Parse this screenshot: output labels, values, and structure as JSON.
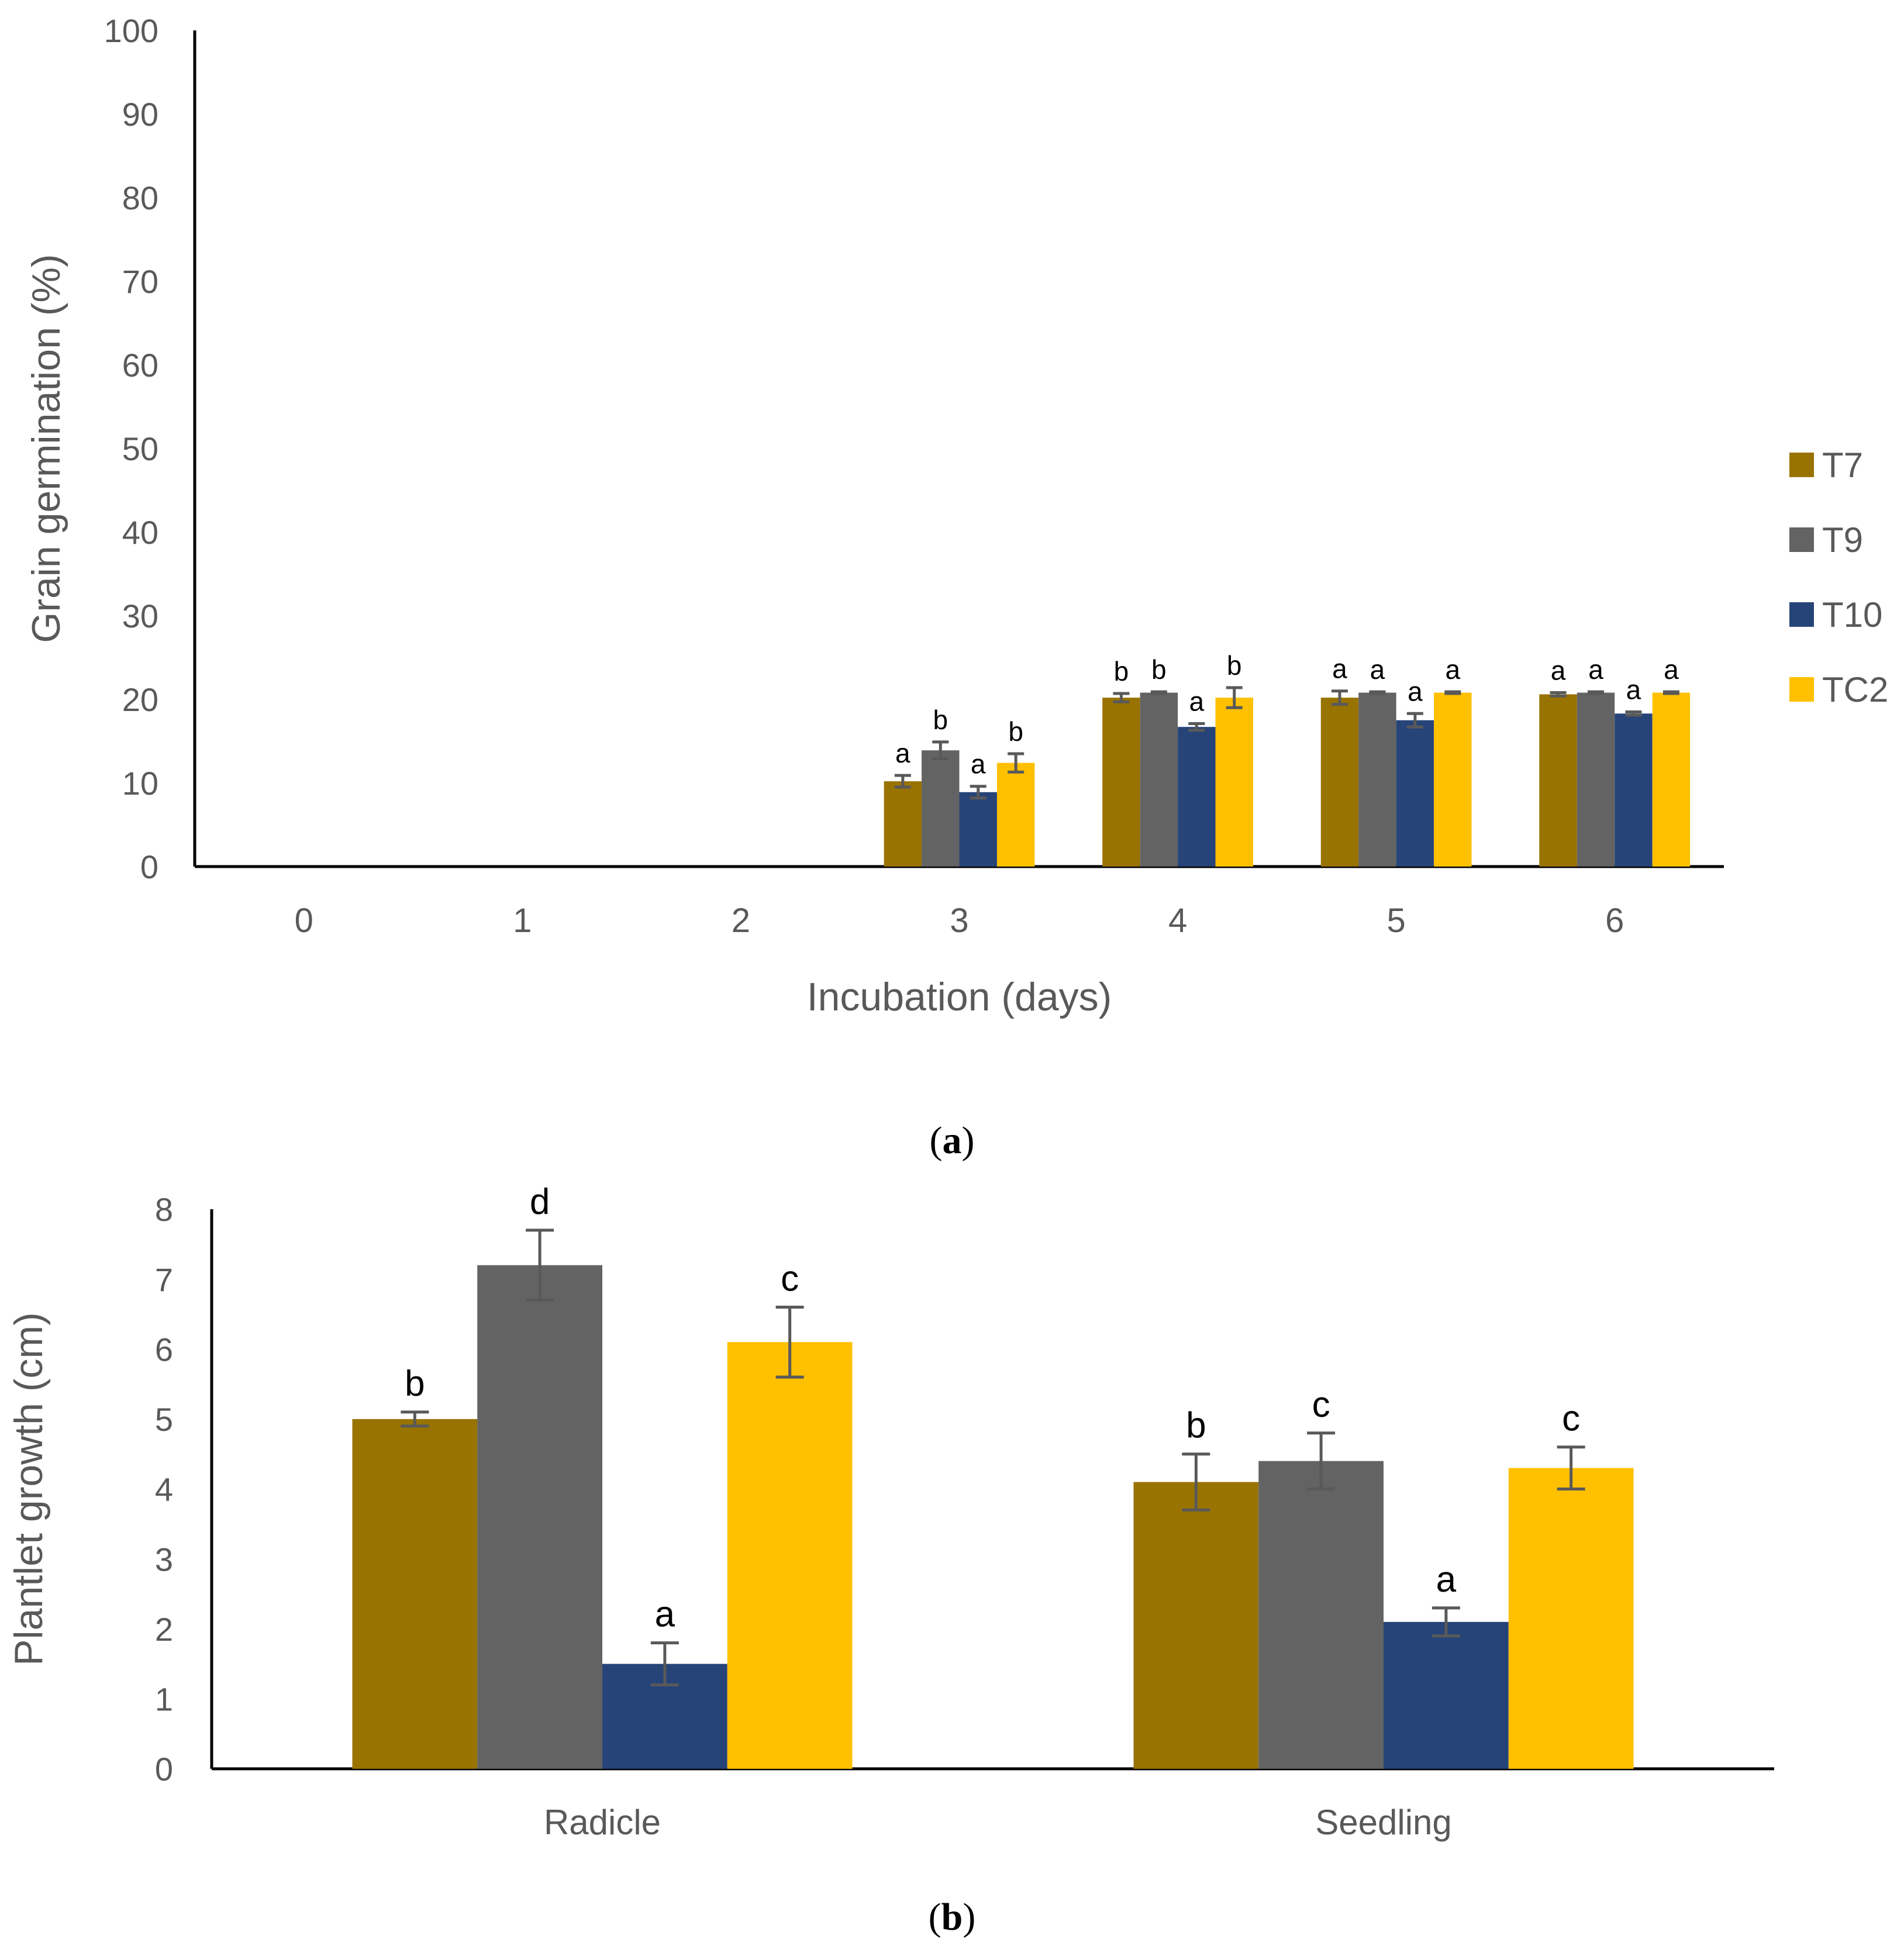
{
  "colors": {
    "T7": "#997300",
    "T9": "#636363",
    "T10": "#264478",
    "TC2": "#FFC000"
  },
  "chart_data": [
    {
      "type": "bar",
      "panel_label": "a",
      "xlabel": "Incubation (days)",
      "ylabel": "Grain germination (%)",
      "ylim": [
        0,
        100
      ],
      "yticks": [
        0,
        10,
        20,
        30,
        40,
        50,
        60,
        70,
        80,
        90,
        100
      ],
      "categories": [
        "0",
        "1",
        "2",
        "3",
        "4",
        "5",
        "6"
      ],
      "grid": false,
      "legend": "right",
      "series": [
        {
          "name": "T7",
          "values": [
            0,
            0,
            0,
            10.2,
            20.2,
            20.2,
            20.6
          ],
          "errors": [
            0,
            0,
            0,
            0.7,
            0.5,
            0.8,
            0.2
          ],
          "letters": [
            "",
            "",
            "",
            "a",
            "b",
            "a",
            "a"
          ]
        },
        {
          "name": "T9",
          "values": [
            0,
            0,
            0,
            13.9,
            20.8,
            20.8,
            20.8
          ],
          "errors": [
            0,
            0,
            0,
            1.0,
            0.1,
            0.1,
            0.1
          ],
          "letters": [
            "",
            "",
            "",
            "b",
            "b",
            "a",
            "a"
          ]
        },
        {
          "name": "T10",
          "values": [
            0,
            0,
            0,
            8.9,
            16.7,
            17.5,
            18.3
          ],
          "errors": [
            0,
            0,
            0,
            0.7,
            0.4,
            0.8,
            0.2
          ],
          "letters": [
            "",
            "",
            "",
            "a",
            "a",
            "a",
            "a"
          ]
        },
        {
          "name": "TC2",
          "values": [
            0,
            0,
            0,
            12.4,
            20.2,
            20.8,
            20.8
          ],
          "errors": [
            0,
            0,
            0,
            1.1,
            1.2,
            0.1,
            0.1
          ],
          "letters": [
            "",
            "",
            "",
            "b",
            "b",
            "a",
            "a"
          ]
        }
      ]
    },
    {
      "type": "bar",
      "panel_label": "b",
      "xlabel": "",
      "ylabel": "Plantlet growth (cm)",
      "ylim": [
        0,
        8
      ],
      "yticks": [
        0,
        1,
        2,
        3,
        4,
        5,
        6,
        7,
        8
      ],
      "categories": [
        "Radicle",
        "Seedling"
      ],
      "grid": false,
      "legend": "none",
      "series": [
        {
          "name": "T7",
          "values": [
            5.0,
            4.1
          ],
          "errors": [
            0.1,
            0.4
          ],
          "letters": [
            "b",
            "b"
          ]
        },
        {
          "name": "T9",
          "values": [
            7.2,
            4.4
          ],
          "errors": [
            0.5,
            0.4
          ],
          "letters": [
            "d",
            "c"
          ]
        },
        {
          "name": "T10",
          "values": [
            1.5,
            2.1
          ],
          "errors": [
            0.3,
            0.2
          ],
          "letters": [
            "a",
            "a"
          ]
        },
        {
          "name": "TC2",
          "values": [
            6.1,
            4.3
          ],
          "errors": [
            0.5,
            0.3
          ],
          "letters": [
            "c",
            "c"
          ]
        }
      ]
    }
  ]
}
